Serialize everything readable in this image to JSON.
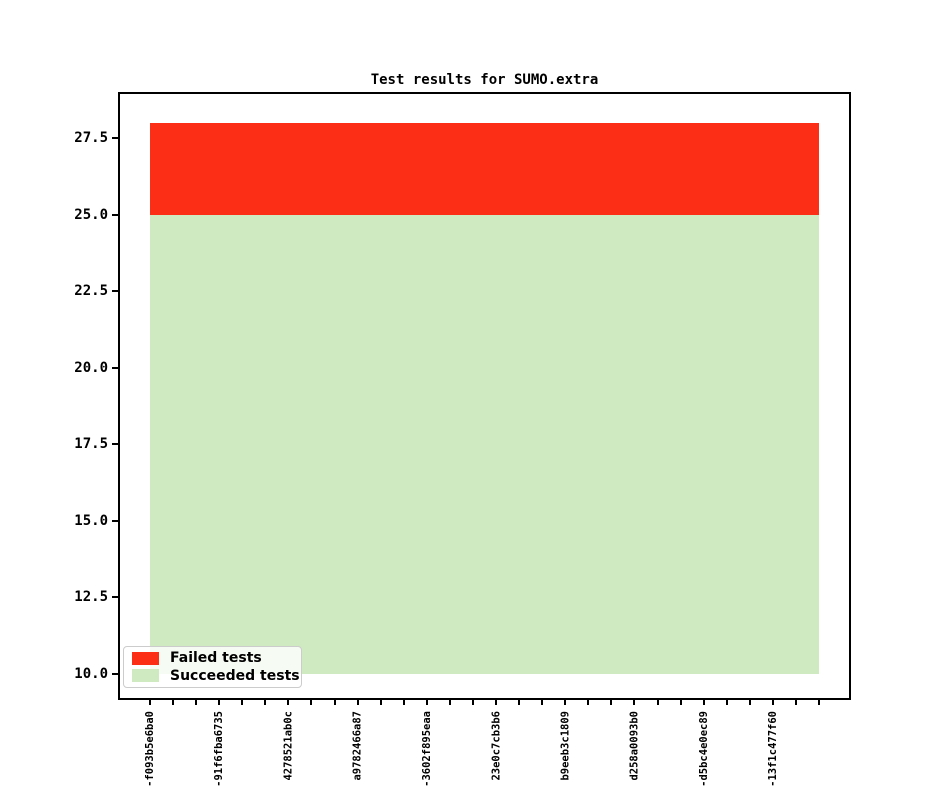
{
  "chart_data": {
    "type": "area",
    "title": "Test results for SUMO.extra",
    "xlabel": "",
    "ylabel": "",
    "num_points": 30,
    "x_label_every_n_ticks": 3,
    "x_labels": [
      "-f093b5e6ba0",
      "-91f6fba6735",
      "4278521ab0c",
      "a9782466a87",
      "-3602f895eaa",
      "23e0c7cb3b6",
      "b9eeb3c1809",
      "d258a0093b0",
      "-d5bc4e0ec89",
      "-13f1c477f60"
    ],
    "series": [
      {
        "name": "Succeeded tests",
        "color": "#cfeac0",
        "band": [
          10,
          25
        ],
        "value": 25
      },
      {
        "name": "Failed tests",
        "color": "#fd2e16",
        "band": [
          25,
          28
        ],
        "value": 3
      }
    ],
    "yticks": [
      "27.5",
      "25.0",
      "22.5",
      "20.0",
      "17.5",
      "15.0",
      "12.5",
      "10.0"
    ],
    "ylim": [
      9.15,
      29.0
    ],
    "grid": false,
    "legend": {
      "position": "lower left",
      "entries": [
        {
          "label": "Failed tests",
          "color": "#fd2e16"
        },
        {
          "label": "Succeeded tests",
          "color": "#cfeac0"
        }
      ]
    }
  }
}
